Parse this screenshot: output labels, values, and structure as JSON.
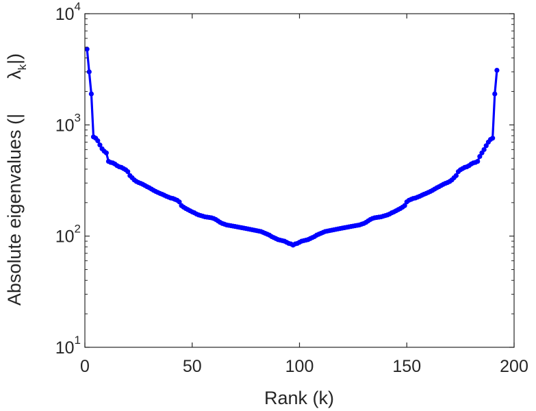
{
  "chart_data": {
    "type": "line",
    "title": "",
    "xlabel": "Rank (k)",
    "ylabel": "Absolute eigenvalues (|λ_k|)",
    "ylabel_parts": {
      "prefix": "Absolute eigenvalues (|",
      "symbol": "λ",
      "subscript": "k",
      "suffix": "|)"
    },
    "x_range": [
      0,
      200
    ],
    "y_range": [
      10,
      10000
    ],
    "y_scale": "log",
    "grid": false,
    "x_ticks": [
      {
        "value": 0,
        "label": "0"
      },
      {
        "value": 50,
        "label": "50"
      },
      {
        "value": 100,
        "label": "100"
      },
      {
        "value": 150,
        "label": "150"
      },
      {
        "value": 200,
        "label": "200"
      }
    ],
    "y_ticks": [
      {
        "value": 10,
        "base": "10",
        "exp": "1"
      },
      {
        "value": 100,
        "base": "10",
        "exp": "2"
      },
      {
        "value": 1000,
        "base": "10",
        "exp": "3"
      },
      {
        "value": 10000,
        "base": "10",
        "exp": "4"
      }
    ],
    "series": [
      {
        "color": "#0000ff",
        "marker": "circle",
        "points": [
          [
            1,
            4800
          ],
          [
            2,
            3000
          ],
          [
            3,
            1900
          ],
          [
            4,
            780
          ],
          [
            5,
            760
          ],
          [
            6,
            720
          ],
          [
            7,
            660
          ],
          [
            8,
            610
          ],
          [
            9,
            580
          ],
          [
            10,
            560
          ],
          [
            11,
            470
          ],
          [
            12,
            460
          ],
          [
            13,
            455
          ],
          [
            14,
            445
          ],
          [
            15,
            430
          ],
          [
            16,
            420
          ],
          [
            17,
            415
          ],
          [
            18,
            405
          ],
          [
            19,
            395
          ],
          [
            20,
            380
          ],
          [
            21,
            350
          ],
          [
            22,
            335
          ],
          [
            23,
            320
          ],
          [
            24,
            310
          ],
          [
            25,
            303
          ],
          [
            26,
            298
          ],
          [
            27,
            292
          ],
          [
            28,
            285
          ],
          [
            29,
            278
          ],
          [
            30,
            272
          ],
          [
            31,
            265
          ],
          [
            32,
            258
          ],
          [
            33,
            252
          ],
          [
            34,
            247
          ],
          [
            35,
            242
          ],
          [
            36,
            238
          ],
          [
            37,
            233
          ],
          [
            38,
            228
          ],
          [
            39,
            224
          ],
          [
            40,
            220
          ],
          [
            41,
            218
          ],
          [
            42,
            214
          ],
          [
            43,
            210
          ],
          [
            44,
            203
          ],
          [
            45,
            188
          ],
          [
            46,
            182
          ],
          [
            47,
            177
          ],
          [
            48,
            173
          ],
          [
            49,
            169
          ],
          [
            50,
            165
          ],
          [
            51,
            162
          ],
          [
            52,
            158
          ],
          [
            53,
            155
          ],
          [
            54,
            153
          ],
          [
            55,
            151
          ],
          [
            56,
            149
          ],
          [
            57,
            148
          ],
          [
            58,
            147
          ],
          [
            59,
            146
          ],
          [
            60,
            144
          ],
          [
            61,
            141
          ],
          [
            62,
            137
          ],
          [
            63,
            133
          ],
          [
            64,
            130
          ],
          [
            65,
            128
          ],
          [
            66,
            126
          ],
          [
            67,
            125
          ],
          [
            68,
            124
          ],
          [
            69,
            123
          ],
          [
            70,
            122
          ],
          [
            71,
            121
          ],
          [
            72,
            120
          ],
          [
            73,
            119
          ],
          [
            74,
            118
          ],
          [
            75,
            117
          ],
          [
            76,
            116
          ],
          [
            77,
            115
          ],
          [
            78,
            114
          ],
          [
            79,
            113
          ],
          [
            80,
            112
          ],
          [
            81,
            111
          ],
          [
            82,
            110
          ],
          [
            83,
            108
          ],
          [
            84,
            106
          ],
          [
            85,
            104
          ],
          [
            86,
            102
          ],
          [
            87,
            99
          ],
          [
            88,
            97
          ],
          [
            89,
            95
          ],
          [
            90,
            93
          ],
          [
            91,
            92
          ],
          [
            92,
            91
          ],
          [
            93,
            90
          ],
          [
            94,
            88
          ],
          [
            95,
            86
          ],
          [
            96,
            85
          ],
          [
            97,
            83
          ],
          [
            98,
            85
          ],
          [
            99,
            86
          ],
          [
            100,
            88
          ],
          [
            101,
            90
          ],
          [
            102,
            91
          ],
          [
            103,
            92
          ],
          [
            104,
            93
          ],
          [
            105,
            95
          ],
          [
            106,
            97
          ],
          [
            107,
            99
          ],
          [
            108,
            102
          ],
          [
            109,
            104
          ],
          [
            110,
            106
          ],
          [
            111,
            108
          ],
          [
            112,
            110
          ],
          [
            113,
            111
          ],
          [
            114,
            112
          ],
          [
            115,
            113
          ],
          [
            116,
            114
          ],
          [
            117,
            115
          ],
          [
            118,
            116
          ],
          [
            119,
            117
          ],
          [
            120,
            118
          ],
          [
            121,
            119
          ],
          [
            122,
            120
          ],
          [
            123,
            121
          ],
          [
            124,
            122
          ],
          [
            125,
            123
          ],
          [
            126,
            124
          ],
          [
            127,
            125
          ],
          [
            128,
            126
          ],
          [
            129,
            128
          ],
          [
            130,
            130
          ],
          [
            131,
            133
          ],
          [
            132,
            137
          ],
          [
            133,
            141
          ],
          [
            134,
            144
          ],
          [
            135,
            146
          ],
          [
            136,
            147
          ],
          [
            137,
            148
          ],
          [
            138,
            149
          ],
          [
            139,
            151
          ],
          [
            140,
            153
          ],
          [
            141,
            155
          ],
          [
            142,
            158
          ],
          [
            143,
            162
          ],
          [
            144,
            165
          ],
          [
            145,
            169
          ],
          [
            146,
            173
          ],
          [
            147,
            177
          ],
          [
            148,
            182
          ],
          [
            149,
            188
          ],
          [
            150,
            203
          ],
          [
            151,
            210
          ],
          [
            152,
            214
          ],
          [
            153,
            218
          ],
          [
            154,
            220
          ],
          [
            155,
            224
          ],
          [
            156,
            228
          ],
          [
            157,
            233
          ],
          [
            158,
            238
          ],
          [
            159,
            242
          ],
          [
            160,
            247
          ],
          [
            161,
            252
          ],
          [
            162,
            258
          ],
          [
            163,
            265
          ],
          [
            164,
            272
          ],
          [
            165,
            278
          ],
          [
            166,
            285
          ],
          [
            167,
            292
          ],
          [
            168,
            298
          ],
          [
            169,
            303
          ],
          [
            170,
            310
          ],
          [
            171,
            320
          ],
          [
            172,
            335
          ],
          [
            173,
            350
          ],
          [
            174,
            380
          ],
          [
            175,
            395
          ],
          [
            176,
            405
          ],
          [
            177,
            415
          ],
          [
            178,
            420
          ],
          [
            179,
            430
          ],
          [
            180,
            445
          ],
          [
            181,
            455
          ],
          [
            182,
            460
          ],
          [
            183,
            470
          ],
          [
            184,
            520
          ],
          [
            185,
            560
          ],
          [
            186,
            600
          ],
          [
            187,
            650
          ],
          [
            188,
            700
          ],
          [
            189,
            740
          ],
          [
            190,
            760
          ],
          [
            191,
            1900
          ],
          [
            192,
            3100
          ]
        ]
      }
    ]
  }
}
